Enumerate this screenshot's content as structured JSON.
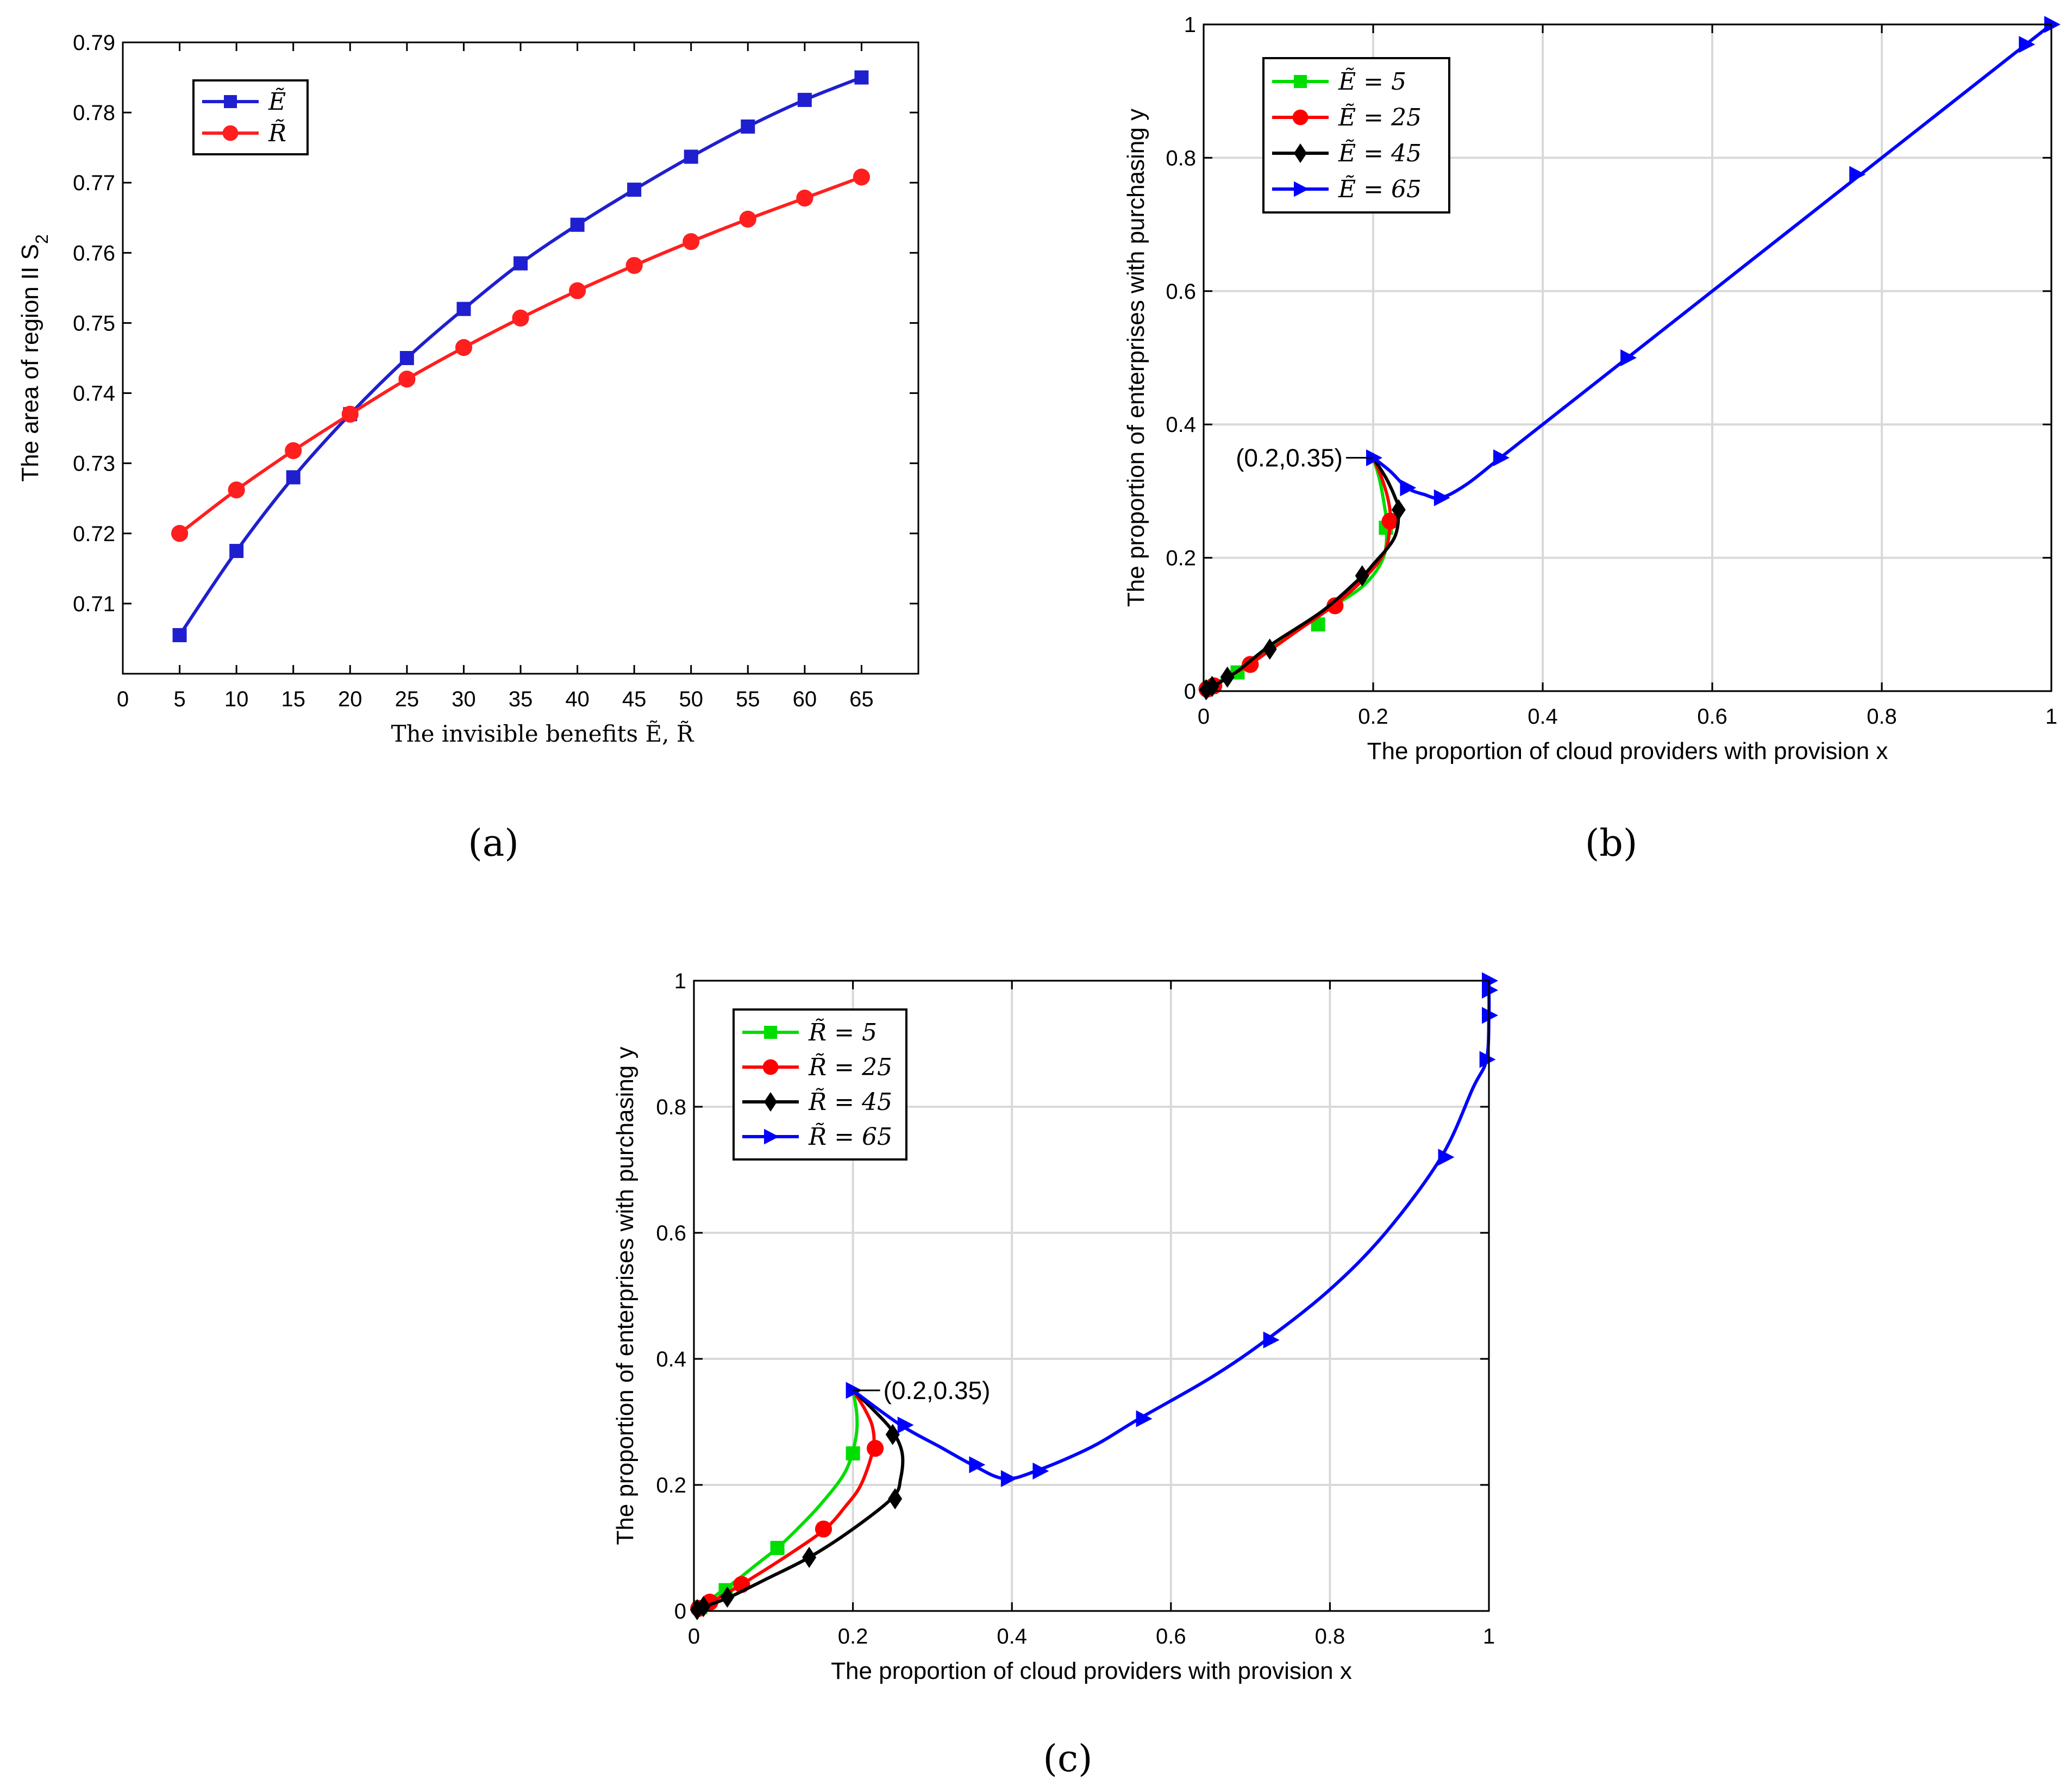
{
  "figure": {
    "panel_labels": [
      "(a)",
      "(b)",
      "(c)"
    ]
  },
  "chart_data": [
    {
      "type": "line",
      "panel": "(a)",
      "xlabel": "The invisible benefits Ẽ, R̃",
      "ylabel": "The area of region II S2",
      "xlim": [
        0,
        70
      ],
      "ylim": [
        0.7,
        0.79
      ],
      "xticks": [
        0,
        5,
        10,
        15,
        20,
        25,
        30,
        35,
        40,
        45,
        50,
        55,
        60,
        65
      ],
      "yticks": [
        0.71,
        0.72,
        0.73,
        0.74,
        0.75,
        0.76,
        0.77,
        0.78,
        0.79
      ],
      "grid": false,
      "legend_position": "top-left",
      "series": [
        {
          "name": "Ẽ",
          "color": "#1f1fcf",
          "marker": "square",
          "x": [
            5,
            10,
            15,
            20,
            25,
            30,
            35,
            40,
            45,
            50,
            55,
            60,
            65
          ],
          "y": [
            0.7055,
            0.7175,
            0.728,
            0.737,
            0.745,
            0.752,
            0.7585,
            0.764,
            0.769,
            0.7737,
            0.778,
            0.7818,
            0.785
          ]
        },
        {
          "name": "R̃",
          "color": "#ff1f1f",
          "marker": "circle",
          "x": [
            5,
            10,
            15,
            20,
            25,
            30,
            35,
            40,
            45,
            50,
            55,
            60,
            65
          ],
          "y": [
            0.72,
            0.7262,
            0.7318,
            0.737,
            0.742,
            0.7465,
            0.7507,
            0.7546,
            0.7582,
            0.7616,
            0.7648,
            0.7678,
            0.7708
          ]
        }
      ]
    },
    {
      "type": "line",
      "panel": "(b)",
      "xlabel": "The proportion of cloud providers with provision x",
      "ylabel": "The proportion of enterprises with purchasing y",
      "xlim": [
        0,
        1
      ],
      "ylim": [
        0,
        1
      ],
      "xticks": [
        0,
        0.2,
        0.4,
        0.6,
        0.8,
        1
      ],
      "yticks": [
        0,
        0.2,
        0.4,
        0.6,
        0.8,
        1
      ],
      "xtick_labels": [
        "0",
        "0.2",
        "0.4",
        "0.6",
        "0.8",
        "1"
      ],
      "ytick_labels": [
        "0",
        "0.2",
        "0.4",
        "0.6",
        "0.8",
        "1"
      ],
      "grid": true,
      "legend_position": "top-left",
      "annotation": {
        "text": "(0.2,0.35)",
        "x": 0.2,
        "y": 0.35
      },
      "series": [
        {
          "name": "Ẽ = 5",
          "color": "#00dd00",
          "marker": "square",
          "x": [
            0.2,
            0.207,
            0.213,
            0.216,
            0.212,
            0.19,
            0.15,
            0.1,
            0.06,
            0.035,
            0.015,
            0.006,
            0.002
          ],
          "y": [
            0.35,
            0.32,
            0.28,
            0.245,
            0.2,
            0.16,
            0.125,
            0.085,
            0.05,
            0.028,
            0.012,
            0.005,
            0.002
          ],
          "markers": [
            [
              0.215,
              0.245
            ],
            [
              0.135,
              0.1
            ],
            [
              0.04,
              0.028
            ],
            [
              0.008,
              0.006
            ]
          ]
        },
        {
          "name": "Ẽ = 25",
          "color": "#ff0000",
          "marker": "circle",
          "x": [
            0.2,
            0.21,
            0.218,
            0.22,
            0.214,
            0.19,
            0.155,
            0.11,
            0.06,
            0.03,
            0.012,
            0.004
          ],
          "y": [
            0.35,
            0.32,
            0.285,
            0.255,
            0.21,
            0.17,
            0.13,
            0.09,
            0.045,
            0.022,
            0.008,
            0.003
          ],
          "markers": [
            [
              0.22,
              0.255
            ],
            [
              0.155,
              0.128
            ],
            [
              0.055,
              0.04
            ],
            [
              0.012,
              0.008
            ],
            [
              0.004,
              0.003
            ]
          ]
        },
        {
          "name": "Ẽ = 45",
          "color": "#000000",
          "marker": "diamond",
          "x": [
            0.2,
            0.215,
            0.226,
            0.23,
            0.225,
            0.2,
            0.185,
            0.14,
            0.08,
            0.04,
            0.015,
            0.005
          ],
          "y": [
            0.35,
            0.32,
            0.29,
            0.27,
            0.23,
            0.19,
            0.17,
            0.12,
            0.07,
            0.03,
            0.01,
            0.003
          ],
          "markers": [
            [
              0.23,
              0.272
            ],
            [
              0.187,
              0.173
            ],
            [
              0.078,
              0.063
            ],
            [
              0.028,
              0.021
            ],
            [
              0.01,
              0.007
            ],
            [
              0.003,
              0.002
            ]
          ]
        },
        {
          "name": "Ẽ = 65",
          "color": "#0000ff",
          "marker": "triangle-right",
          "x": [
            0.2,
            0.22,
            0.24,
            0.26,
            0.28,
            0.31,
            0.35,
            0.42,
            0.5,
            0.6,
            0.7,
            0.77,
            0.85,
            0.92,
            0.97,
            0.99,
            1.0
          ],
          "y": [
            0.35,
            0.33,
            0.305,
            0.295,
            0.29,
            0.31,
            0.35,
            0.42,
            0.5,
            0.6,
            0.7,
            0.77,
            0.85,
            0.92,
            0.97,
            0.99,
            1.0
          ],
          "markers": [
            [
              0.2,
              0.35
            ],
            [
              0.24,
              0.305
            ],
            [
              0.28,
              0.29
            ],
            [
              0.35,
              0.35
            ],
            [
              0.5,
              0.5
            ],
            [
              0.77,
              0.775
            ],
            [
              0.97,
              0.97
            ],
            [
              1.0,
              1.0
            ]
          ]
        }
      ]
    },
    {
      "type": "line",
      "panel": "(c)",
      "xlabel": "The proportion of cloud providers with provision x",
      "ylabel": "The proportion of enterprises with purchasing y",
      "xlim": [
        0,
        1
      ],
      "ylim": [
        0,
        1
      ],
      "xticks": [
        0,
        0.2,
        0.4,
        0.6,
        0.8,
        1
      ],
      "yticks": [
        0,
        0.2,
        0.4,
        0.6,
        0.8,
        1
      ],
      "xtick_labels": [
        "0",
        "0.2",
        "0.4",
        "0.6",
        "0.8",
        "1"
      ],
      "ytick_labels": [
        "0",
        "0.2",
        "0.4",
        "0.6",
        "0.8",
        "1"
      ],
      "grid": true,
      "legend_position": "top-left",
      "annotation": {
        "text": "(0.2,0.35)",
        "x": 0.2,
        "y": 0.35
      },
      "series": [
        {
          "name": "R̃ = 5",
          "color": "#00dd00",
          "marker": "square",
          "x": [
            0.2,
            0.205,
            0.203,
            0.19,
            0.16,
            0.13,
            0.105,
            0.08,
            0.05,
            0.035,
            0.015,
            0.005
          ],
          "y": [
            0.35,
            0.31,
            0.27,
            0.22,
            0.17,
            0.13,
            0.1,
            0.075,
            0.045,
            0.032,
            0.012,
            0.004
          ],
          "markers": [
            [
              0.2,
              0.25
            ],
            [
              0.105,
              0.1
            ],
            [
              0.04,
              0.033
            ],
            [
              0.008,
              0.006
            ]
          ]
        },
        {
          "name": "R̃ = 25",
          "color": "#ff0000",
          "marker": "circle",
          "x": [
            0.2,
            0.215,
            0.225,
            0.225,
            0.21,
            0.19,
            0.165,
            0.12,
            0.06,
            0.03,
            0.01
          ],
          "y": [
            0.35,
            0.32,
            0.29,
            0.255,
            0.2,
            0.165,
            0.13,
            0.09,
            0.042,
            0.02,
            0.006
          ],
          "markers": [
            [
              0.228,
              0.258
            ],
            [
              0.163,
              0.13
            ],
            [
              0.06,
              0.042
            ],
            [
              0.02,
              0.014
            ],
            [
              0.006,
              0.004
            ]
          ]
        },
        {
          "name": "R̃ = 45",
          "color": "#000000",
          "marker": "diamond",
          "x": [
            0.2,
            0.225,
            0.25,
            0.262,
            0.26,
            0.25,
            0.2,
            0.145,
            0.09,
            0.045,
            0.02,
            0.005
          ],
          "y": [
            0.35,
            0.32,
            0.285,
            0.25,
            0.21,
            0.18,
            0.13,
            0.085,
            0.05,
            0.022,
            0.01,
            0.003
          ],
          "markers": [
            [
              0.25,
              0.28
            ],
            [
              0.253,
              0.178
            ],
            [
              0.145,
              0.085
            ],
            [
              0.042,
              0.022
            ],
            [
              0.012,
              0.007
            ],
            [
              0.004,
              0.002
            ]
          ]
        },
        {
          "name": "R̃ = 65",
          "color": "#0000ff",
          "marker": "triangle-right",
          "x": [
            0.2,
            0.26,
            0.31,
            0.35,
            0.39,
            0.43,
            0.5,
            0.56,
            0.65,
            0.72,
            0.8,
            0.87,
            0.94,
            0.98,
            0.997,
            1.0,
            1.0,
            1.0
          ],
          "y": [
            0.35,
            0.295,
            0.26,
            0.232,
            0.21,
            0.222,
            0.26,
            0.305,
            0.37,
            0.43,
            0.51,
            0.6,
            0.72,
            0.83,
            0.875,
            0.945,
            0.985,
            1.0
          ],
          "markers": [
            [
              0.2,
              0.35
            ],
            [
              0.265,
              0.295
            ],
            [
              0.355,
              0.232
            ],
            [
              0.395,
              0.21
            ],
            [
              0.435,
              0.222
            ],
            [
              0.565,
              0.305
            ],
            [
              0.725,
              0.43
            ],
            [
              0.945,
              0.72
            ],
            [
              0.997,
              0.875
            ],
            [
              1.0,
              0.945
            ],
            [
              1.0,
              0.985
            ],
            [
              1.0,
              1.0
            ]
          ]
        }
      ]
    }
  ]
}
